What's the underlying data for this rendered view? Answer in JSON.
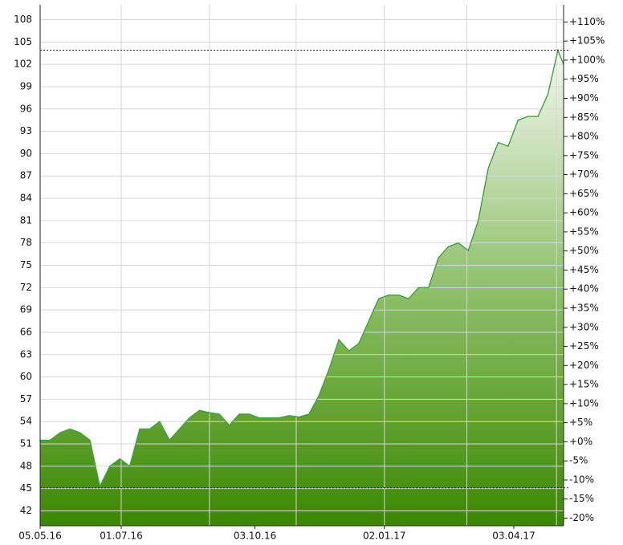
{
  "chart_data": {
    "type": "area",
    "x": [
      "05.05.16",
      "12.05.16",
      "19.05.16",
      "26.05.16",
      "02.06.16",
      "09.06.16",
      "16.06.16",
      "23.06.16",
      "30.06.16",
      "07.07.16",
      "14.07.16",
      "21.07.16",
      "28.07.16",
      "04.08.16",
      "11.08.16",
      "18.08.16",
      "25.08.16",
      "01.09.16",
      "08.09.16",
      "15.09.16",
      "22.09.16",
      "29.09.16",
      "06.10.16",
      "13.10.16",
      "20.10.16",
      "27.10.16",
      "03.11.16",
      "10.11.16",
      "17.11.16",
      "24.11.16",
      "01.12.16",
      "08.12.16",
      "15.12.16",
      "22.12.16",
      "29.12.16",
      "05.01.17",
      "12.01.17",
      "19.01.17",
      "26.01.17",
      "02.02.17",
      "09.02.17",
      "16.02.17",
      "23.02.17",
      "02.03.17",
      "09.03.17",
      "16.03.17",
      "23.03.17",
      "30.03.17",
      "06.04.17",
      "13.04.17",
      "20.04.17",
      "27.04.17",
      "04.05.17",
      "08.05.17"
    ],
    "values": [
      51.5,
      51.5,
      52.5,
      53,
      52.5,
      51.5,
      45.3,
      48,
      49,
      48,
      53,
      53,
      54,
      51.5,
      53,
      54.5,
      55.5,
      55.2,
      55,
      53.5,
      55,
      55,
      54.5,
      54.5,
      54.5,
      54.8,
      54.6,
      55,
      57.5,
      61,
      65,
      63.5,
      64.5,
      67.5,
      70.5,
      71,
      71,
      70.5,
      72,
      72,
      76,
      77.5,
      78,
      77,
      81,
      88,
      91.5,
      91,
      94.5,
      95,
      95,
      98,
      103.9,
      102
    ],
    "color": "#3aa53a",
    "xlim": [
      "05.05.16",
      "08.05.17"
    ],
    "xticks": [
      "05.05.16",
      "01.07.16",
      "03.10.16",
      "02.01.17",
      "03.04.17"
    ],
    "xgrid": [
      "01.07.16",
      "01.09.16",
      "01.11.16",
      "02.01.17",
      "01.03.17",
      "03.05.17"
    ],
    "ylim": [
      40,
      110
    ],
    "yticks": [
      42,
      45,
      48,
      51,
      54,
      57,
      60,
      63,
      66,
      69,
      72,
      75,
      78,
      81,
      84,
      87,
      90,
      93,
      96,
      99,
      102,
      105,
      108
    ],
    "y2lim": [
      -22,
      114.5
    ],
    "y2ticks": [
      {
        "value": -20,
        "label": "-20%"
      },
      {
        "value": -15,
        "label": "-15%"
      },
      {
        "value": -10,
        "label": "-10%"
      },
      {
        "value": -5,
        "label": "-5%"
      },
      {
        "value": 0,
        "label": "+0%"
      },
      {
        "value": 5,
        "label": "+5%"
      },
      {
        "value": 10,
        "label": "+10%"
      },
      {
        "value": 15,
        "label": "+15%"
      },
      {
        "value": 20,
        "label": "+20%"
      },
      {
        "value": 25,
        "label": "+25%"
      },
      {
        "value": 30,
        "label": "+30%"
      },
      {
        "value": 35,
        "label": "+35%"
      },
      {
        "value": 40,
        "label": "+40%"
      },
      {
        "value": 45,
        "label": "+45%"
      },
      {
        "value": 50,
        "label": "+50%"
      },
      {
        "value": 55,
        "label": "+55%"
      },
      {
        "value": 60,
        "label": "+60%"
      },
      {
        "value": 65,
        "label": "+65%"
      },
      {
        "value": 70,
        "label": "+70%"
      },
      {
        "value": 75,
        "label": "+75%"
      },
      {
        "value": 80,
        "label": "+80%"
      },
      {
        "value": 85,
        "label": "+85%"
      },
      {
        "value": 90,
        "label": "+90%"
      },
      {
        "value": 95,
        "label": "+95%"
      },
      {
        "value": 100,
        "label": "+100%"
      },
      {
        "value": 105,
        "label": "+105%"
      },
      {
        "value": 110,
        "label": "+110%"
      }
    ],
    "reference_lines": [
      103.9,
      45.1
    ],
    "grid": true
  }
}
